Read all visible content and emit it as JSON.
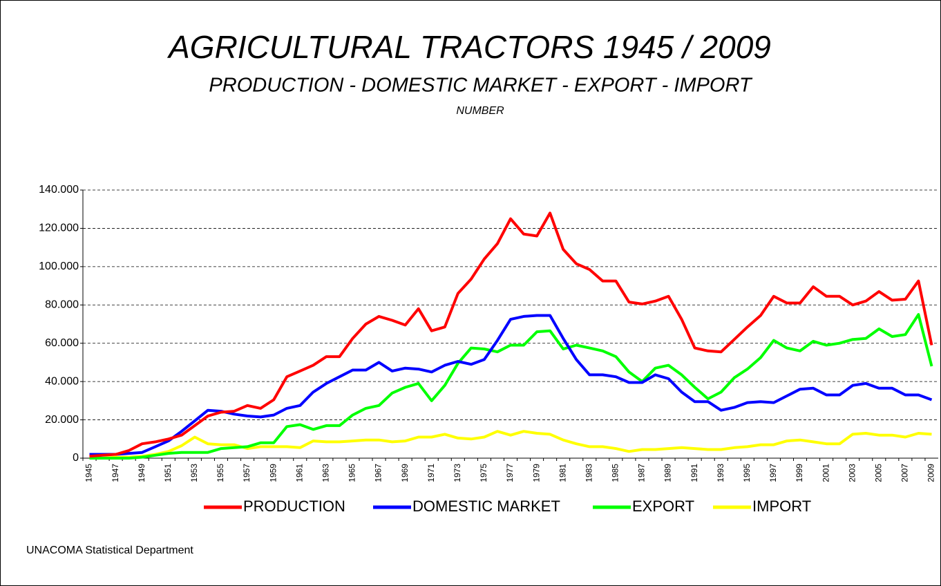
{
  "chart_data": {
    "type": "line",
    "title": "AGRICULTURAL TRACTORS 1945 / 2009",
    "subtitle": "PRODUCTION - DOMESTIC MARKET - EXPORT - IMPORT",
    "ylabel": "NUMBER",
    "source": "UNACOMA Statistical Department",
    "categories": [
      "1945",
      null,
      "1947",
      null,
      "1949",
      null,
      "1951",
      null,
      "1953",
      null,
      "1955",
      null,
      "1957",
      null,
      "1959",
      null,
      "1961",
      null,
      "1963",
      null,
      "1965",
      null,
      "1967",
      null,
      "1969",
      null,
      "1971",
      null,
      "1973",
      null,
      "1975",
      null,
      "1977",
      null,
      "1979",
      null,
      "1981",
      null,
      "1983",
      null,
      "1985",
      null,
      "1987",
      null,
      "1989",
      null,
      "1991",
      null,
      "1993",
      null,
      "1995",
      null,
      "1997",
      null,
      "1999",
      null,
      "2001",
      null,
      "2003",
      null,
      "2005",
      null,
      "2007",
      null,
      "2009"
    ],
    "series": [
      {
        "name": "PRODUCTION",
        "color": "#ff0000",
        "values": [
          1000,
          1500,
          2000,
          4000,
          7500,
          8500,
          10000,
          12000,
          17000,
          22000,
          24000,
          24500,
          27500,
          26000,
          30500,
          42500,
          45500,
          48500,
          53000,
          53000,
          62500,
          70000,
          74000,
          72000,
          69500,
          78000,
          66500,
          68500,
          86000,
          93500,
          104000,
          112000,
          125000,
          117000,
          116000,
          128000,
          109000,
          101500,
          98500,
          92500,
          92500,
          81500,
          80500,
          82000,
          84500,
          72500,
          57500,
          56000,
          55500,
          62000,
          68500,
          74500,
          84500,
          81000,
          81000,
          89500,
          84500,
          84500,
          80000,
          82000,
          87000,
          82500,
          83000,
          92500,
          59000
        ]
      },
      {
        "name": "DOMESTIC MARKET",
        "color": "#0000ff",
        "values": [
          2000,
          2000,
          2000,
          2500,
          3000,
          6000,
          9000,
          14000,
          19500,
          25000,
          24500,
          23000,
          22000,
          21500,
          22500,
          26000,
          27500,
          34500,
          39000,
          42500,
          46000,
          46000,
          50000,
          45500,
          47000,
          46500,
          45000,
          48500,
          50500,
          49000,
          51500,
          61500,
          72500,
          74000,
          74500,
          74500,
          62500,
          51500,
          43500,
          43500,
          42500,
          39500,
          39500,
          43500,
          41500,
          34500,
          29500,
          29500,
          25000,
          26500,
          29000,
          29500,
          29000,
          32500,
          36000,
          36500,
          33000,
          33000,
          38000,
          39000,
          36500,
          36500,
          33000,
          33000,
          30500
        ]
      },
      {
        "name": "EXPORT",
        "color": "#00ff00",
        "values": [
          0,
          0,
          0,
          0,
          500,
          1500,
          2500,
          3000,
          3000,
          3000,
          5000,
          5500,
          6000,
          8000,
          8000,
          16500,
          17500,
          15000,
          17000,
          17000,
          22500,
          26000,
          27500,
          34000,
          37000,
          39000,
          30000,
          38000,
          49500,
          57500,
          57000,
          55500,
          59000,
          59000,
          66000,
          66500,
          57000,
          59000,
          57500,
          56000,
          53000,
          45000,
          40000,
          47000,
          48500,
          43500,
          37000,
          31000,
          34500,
          42000,
          46500,
          52500,
          61500,
          57500,
          56000,
          61000,
          59000,
          60000,
          62000,
          62500,
          67500,
          63500,
          64500,
          75000,
          48000
        ]
      },
      {
        "name": "IMPORT",
        "color": "#ffff00",
        "values": [
          0,
          0,
          500,
          500,
          1000,
          2000,
          3500,
          6500,
          11000,
          7500,
          7000,
          7000,
          5000,
          6000,
          6000,
          6000,
          5500,
          9000,
          8500,
          8500,
          9000,
          9500,
          9500,
          8500,
          9000,
          11000,
          11000,
          12500,
          10500,
          10000,
          11000,
          14000,
          12000,
          14000,
          13000,
          12500,
          9500,
          7500,
          6000,
          6000,
          5000,
          3500,
          4500,
          4500,
          5000,
          5500,
          5000,
          4500,
          4500,
          5500,
          6000,
          7000,
          7000,
          9000,
          9500,
          8500,
          7500,
          7500,
          12500,
          13000,
          12000,
          12000,
          11000,
          13000,
          12500
        ]
      }
    ],
    "ylim": [
      0,
      140000
    ],
    "yticks": [
      0,
      {
        "value": 20000,
        "label": "20.000"
      },
      {
        "value": 40000,
        "label": "40.000"
      },
      {
        "value": 60000,
        "label": "60.000"
      },
      {
        "value": 80000,
        "label": "80.000"
      },
      {
        "value": 100000,
        "label": "100.000"
      },
      {
        "value": 120000,
        "label": "120.000"
      },
      {
        "value": 140000,
        "label": "140.000"
      }
    ],
    "grid": true,
    "legend": "bottom"
  }
}
